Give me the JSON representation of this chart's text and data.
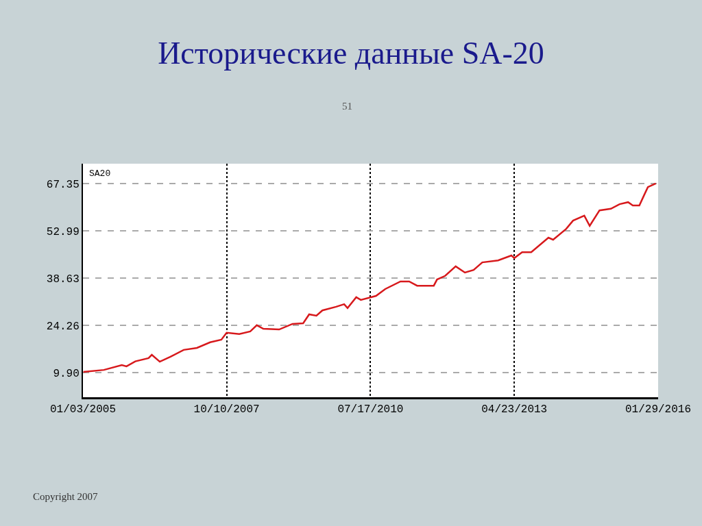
{
  "chart_data": {
    "type": "line",
    "title": "Исторические данные SA-20",
    "annotations": [
      "51",
      "SA20",
      "Copyright 2007"
    ],
    "x": [
      "2005-01-06",
      "2005-05-30",
      "2005-10-03",
      "2005-11-05",
      "2006-01-06",
      "2006-04-09",
      "2006-05-02",
      "2006-06-27",
      "2006-09-10",
      "2006-12-12",
      "2007-03-15",
      "2007-06-16",
      "2007-09-03",
      "2007-10-10",
      "2008-01-07",
      "2008-03-24",
      "2008-05-09",
      "2008-06-24",
      "2008-10-13",
      "2009-01-15",
      "2009-03-31",
      "2009-05-12",
      "2009-07-02",
      "2009-08-13",
      "2009-11-18",
      "2010-01-13",
      "2010-02-06",
      "2010-04-08",
      "2010-05-10",
      "2010-08-25",
      "2010-10-29",
      "2011-02-13",
      "2011-04-15",
      "2011-06-10",
      "2011-10-05",
      "2011-10-28",
      "2011-12-24",
      "2012-03-07",
      "2012-05-11",
      "2012-07-11",
      "2012-09-10",
      "2012-12-30",
      "2013-04-03",
      "2013-04-23",
      "2013-06-17",
      "2013-08-20",
      "2013-12-19",
      "2014-01-21",
      "2014-04-23",
      "2014-06-10",
      "2014-08-28",
      "2014-10-05",
      "2014-12-13",
      "2015-03-03",
      "2015-05-03",
      "2015-07-02",
      "2015-08-04",
      "2015-09-19",
      "2015-10-22",
      "2015-11-18",
      "2016-01-13"
    ],
    "series": [
      {
        "color": "#d7191c",
        "values": [
          10.1,
          10.7,
          12.2,
          11.8,
          13.3,
          14.3,
          15.3,
          13.2,
          14.7,
          16.8,
          17.4,
          19.1,
          19.9,
          22.0,
          21.6,
          22.4,
          24.3,
          23.2,
          23.0,
          24.7,
          24.9,
          27.6,
          27.2,
          28.8,
          29.9,
          30.7,
          29.5,
          32.8,
          32.0,
          33.2,
          35.3,
          37.6,
          37.6,
          36.3,
          36.3,
          38.2,
          39.3,
          42.2,
          40.3,
          41.1,
          43.4,
          44.0,
          45.5,
          44.7,
          46.5,
          46.5,
          50.9,
          50.3,
          53.6,
          56.1,
          57.6,
          54.5,
          59.2,
          59.7,
          61.1,
          61.7,
          60.7,
          60.7,
          63.8,
          66.3,
          67.4
        ]
      }
    ],
    "xlim": [
      "2005-01-03",
      "2016-01-29"
    ],
    "xticks": [
      {
        "value": "2005-01-03",
        "label": "01/03/2005"
      },
      {
        "value": "2007-10-10",
        "label": "10/10/2007"
      },
      {
        "value": "2010-07-17",
        "label": "07/17/2010"
      },
      {
        "value": "2013-04-23",
        "label": "04/23/2013"
      },
      {
        "value": "2016-01-29",
        "label": "01/29/2016"
      }
    ],
    "ylim": [
      2.4,
      73.4
    ],
    "yticks": [
      {
        "value": 9.9,
        "label": "9.90"
      },
      24.26,
      38.63,
      52.99,
      67.35
    ],
    "grid": true,
    "marker": "none",
    "line_style": "solid"
  }
}
